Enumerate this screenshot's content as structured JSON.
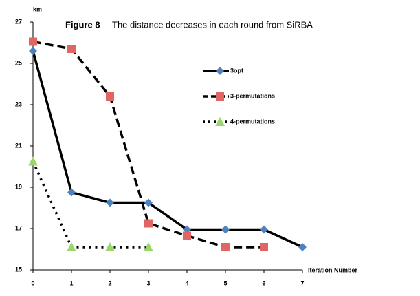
{
  "chart_data": {
    "type": "line",
    "title": "Figure 8",
    "subtitle": "The distance decreases in each round from SiRBA",
    "y_label": "km",
    "x_label": "Iteration Number",
    "x": [
      0,
      1,
      2,
      3,
      4,
      5,
      6,
      7
    ],
    "xlim": [
      0,
      7
    ],
    "xticks": [
      0,
      1,
      2,
      3,
      4,
      5,
      6,
      7
    ],
    "ylim": [
      15,
      27
    ],
    "yticks": [
      15,
      17,
      19,
      21,
      23,
      25,
      27
    ],
    "grid": false,
    "legend": "right",
    "series": [
      {
        "name": "3opt",
        "color": "#4f81bd",
        "marker": "diamond",
        "line_color": "#000000",
        "line_style": "solid",
        "values": [
          25.6,
          18.75,
          18.25,
          18.25,
          16.95,
          16.95,
          16.95,
          16.1
        ]
      },
      {
        "name": "3-permutations",
        "color": "#e06666",
        "marker": "square",
        "line_color": "#000000",
        "line_style": "dashed",
        "values": [
          26.05,
          25.7,
          23.4,
          17.25,
          16.65,
          16.1,
          16.1,
          null
        ]
      },
      {
        "name": "4-permutations",
        "color": "#9bd66b",
        "marker": "triangle",
        "line_color": "#000000",
        "line_style": "dotted",
        "values": [
          20.25,
          16.1,
          16.1,
          16.1,
          null,
          null,
          null,
          null
        ]
      }
    ]
  }
}
